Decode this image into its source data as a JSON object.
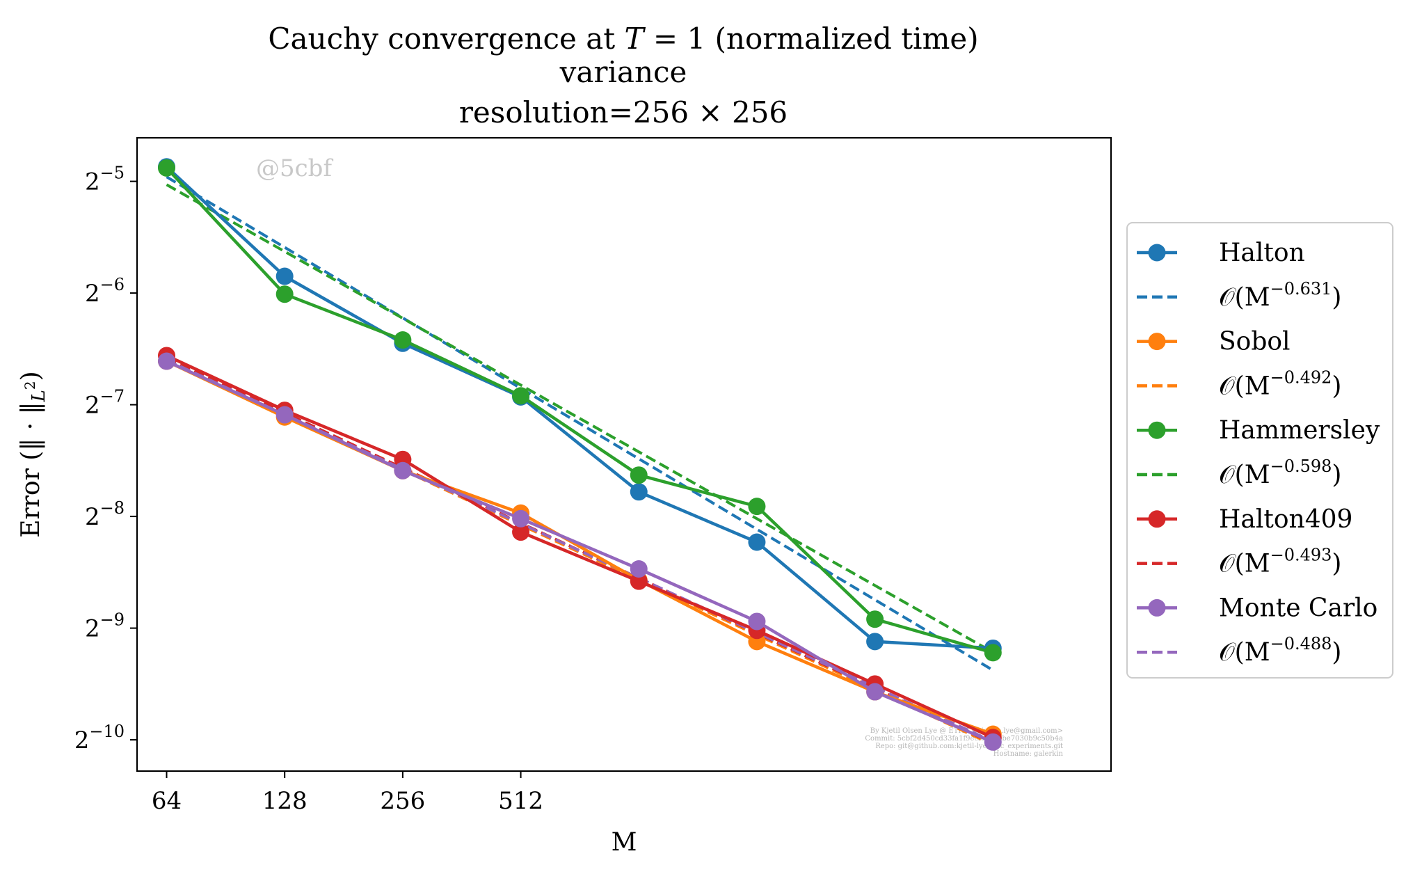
{
  "chart_data": {
    "type": "line",
    "title_lines": [
      "Cauchy convergence at T = 1 (normalized time)",
      "variance",
      "resolution=256 × 256"
    ],
    "xlabel": "M",
    "ylabel": "Error (‖ · ‖L²)",
    "x_scale": "log2",
    "y_scale": "log2",
    "x_ticks": [
      64,
      128,
      256,
      512
    ],
    "x_tick_labels": [
      "64",
      "128",
      "256",
      "512"
    ],
    "y_tick_exponents": [
      -5,
      -6,
      -7,
      -8,
      -9,
      -10
    ],
    "xlim": [
      53.8,
      16384
    ],
    "ylim": [
      -10.28,
      -4.61
    ],
    "x": [
      64,
      128,
      256,
      512,
      1024,
      2048,
      4096,
      8192
    ],
    "series": [
      {
        "name": "Halton",
        "color": "#1f77b4",
        "log2_values": [
          -4.87,
          -5.85,
          -6.45,
          -6.93,
          -7.78,
          -8.23,
          -9.12,
          -9.18
        ]
      },
      {
        "name": "Sobol",
        "color": "#ff7f0e",
        "log2_values": [
          -6.61,
          -7.11,
          -7.59,
          -7.97,
          -8.57,
          -9.12,
          -9.57,
          -9.95
        ]
      },
      {
        "name": "Hammersley",
        "color": "#2ca02c",
        "log2_values": [
          -4.88,
          -6.01,
          -6.42,
          -6.92,
          -7.63,
          -7.91,
          -8.92,
          -9.22
        ]
      },
      {
        "name": "Halton409",
        "color": "#d62728",
        "log2_values": [
          -6.56,
          -7.05,
          -7.49,
          -8.14,
          -8.58,
          -9.02,
          -9.5,
          -9.98
        ]
      },
      {
        "name": "Monte Carlo",
        "color": "#9467bd",
        "log2_values": [
          -6.61,
          -7.09,
          -7.59,
          -8.02,
          -8.47,
          -8.94,
          -9.57,
          -10.02
        ]
      }
    ],
    "fits": [
      {
        "name": "O(M^-0.631)",
        "label": "𝒪(M",
        "exponent": "−0.631",
        "color": "#1f77b4",
        "slope": -0.631,
        "log2_start": -4.96,
        "x_from": 64,
        "x_to": 8192
      },
      {
        "name": "O(M^-0.492)",
        "label": "𝒪(M",
        "exponent": "−0.492",
        "color": "#ff7f0e",
        "slope": -0.492,
        "log2_start": -6.6,
        "x_from": 64,
        "x_to": 8192
      },
      {
        "name": "O(M^-0.598)",
        "label": "𝒪(M",
        "exponent": "−0.598",
        "color": "#2ca02c",
        "slope": -0.598,
        "log2_start": -5.03,
        "x_from": 64,
        "x_to": 8192
      },
      {
        "name": "O(M^-0.493)",
        "label": "𝒪(M",
        "exponent": "−0.493",
        "color": "#d62728",
        "slope": -0.493,
        "log2_start": -6.58,
        "x_from": 64,
        "x_to": 8192
      },
      {
        "name": "O(M^-0.488)",
        "label": "𝒪(M",
        "exponent": "−0.488",
        "color": "#9467bd",
        "slope": -0.488,
        "log2_start": -6.6,
        "x_from": 64,
        "x_to": 8192
      }
    ],
    "legend_order": [
      "Halton",
      "O(M^-0.631)",
      "Sobol",
      "O(M^-0.492)",
      "Hammersley",
      "O(M^-0.598)",
      "Halton409",
      "O(M^-0.493)",
      "Monte Carlo",
      "O(M^-0.488)"
    ],
    "legend_placement": "outside-right",
    "grid": false,
    "watermark": "@5cbf",
    "credits": [
      "By Kjetil Olsen Lye @ ETHZ <kjetil.o.lye@gmail.com>",
      "Commit: 5cbf2d450cd33fa1f9ecfcd6e4be7030b9c50b4a",
      "Repo: git@github.com:kjetil-lye/qmc_experiments.git",
      "Hostname: galerkin"
    ]
  }
}
